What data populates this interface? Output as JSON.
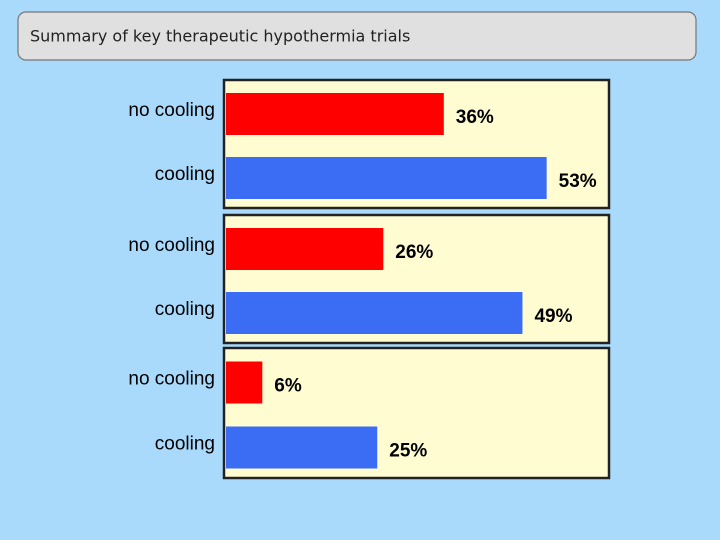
{
  "title": "Summary of key therapeutic hypothermia trials",
  "chart_data": [
    {
      "type": "bar",
      "orientation": "horizontal",
      "categories": [
        "no cooling",
        "cooling"
      ],
      "values": [
        36,
        53
      ],
      "value_labels": [
        "36%",
        "53%"
      ],
      "colors": [
        "#ff0000",
        "#3a6cf4"
      ]
    },
    {
      "type": "bar",
      "orientation": "horizontal",
      "categories": [
        "no cooling",
        "cooling"
      ],
      "values": [
        26,
        49
      ],
      "value_labels": [
        "26%",
        "49%"
      ],
      "colors": [
        "#ff0000",
        "#3a6cf4"
      ]
    },
    {
      "type": "bar",
      "orientation": "horizontal",
      "categories": [
        "no cooling",
        "cooling"
      ],
      "values": [
        6,
        25
      ],
      "value_labels": [
        "6%",
        "25%"
      ],
      "colors": [
        "#ff0000",
        "#3a6cf4"
      ]
    }
  ]
}
